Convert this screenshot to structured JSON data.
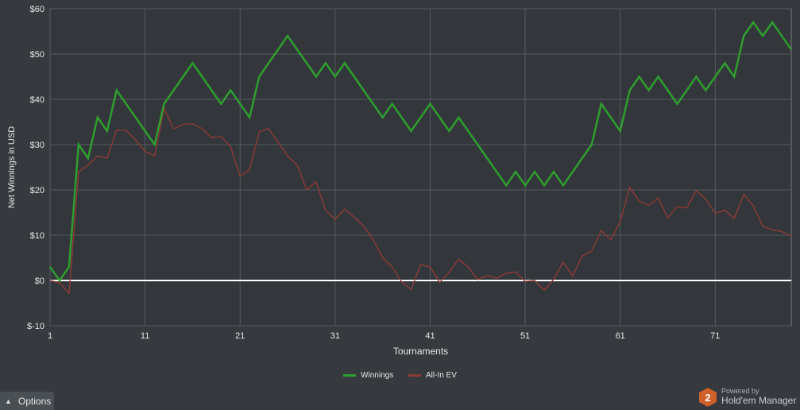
{
  "chart_data": {
    "type": "line",
    "xlabel": "Tournaments",
    "ylabel": "Net Winnings in USD",
    "xlim": [
      1,
      79
    ],
    "ylim": [
      -10,
      60
    ],
    "x_ticks": [
      1,
      11,
      21,
      31,
      41,
      51,
      61,
      71
    ],
    "y_ticks": [
      "$-10",
      "$0",
      "$10",
      "$20",
      "$30",
      "$40",
      "$50",
      "$60"
    ],
    "y_tick_values": [
      -10,
      0,
      10,
      20,
      30,
      40,
      50,
      60
    ],
    "grid": true,
    "legend_position": "bottom-center",
    "zero_line": true,
    "series": [
      {
        "name": "Winnings",
        "color": "#2e9e2e",
        "values": [
          3,
          0,
          3,
          30,
          27,
          36,
          33,
          42,
          39,
          36,
          33,
          30,
          39,
          42,
          45,
          48,
          45,
          42,
          39,
          42,
          39,
          36,
          45,
          48,
          51,
          54,
          51,
          48,
          45,
          48,
          45,
          48,
          45,
          42,
          39,
          36,
          39,
          36,
          33,
          36,
          39,
          36,
          33,
          36,
          33,
          30,
          27,
          24,
          21,
          24,
          21,
          24,
          21,
          24,
          21,
          24,
          27,
          30,
          39,
          36,
          33,
          42,
          45,
          42,
          45,
          42,
          39,
          42,
          45,
          42,
          45,
          48,
          45,
          54,
          57,
          54,
          57,
          54,
          51
        ]
      },
      {
        "name": "All-In EV",
        "color": "#8e3a36",
        "values": [
          0,
          -0.5,
          -2.8,
          24,
          25.5,
          27.5,
          27,
          33.2,
          33.2,
          31,
          28.5,
          27.5,
          38,
          33.5,
          34.5,
          34.6,
          33.5,
          31.5,
          31.8,
          29.5,
          23,
          24.5,
          32.8,
          33.5,
          30.5,
          27.5,
          25.5,
          20,
          21.8,
          15.5,
          13.5,
          15.8,
          14,
          12,
          9,
          5,
          3,
          -0.3,
          -2,
          3.5,
          3,
          -0.4,
          1.8,
          4.7,
          3,
          0.2,
          1.1,
          0.5,
          1.6,
          1.9,
          -0.2,
          0,
          -2.2,
          0.3,
          4,
          1,
          5.4,
          6.5,
          11,
          9,
          13,
          20.6,
          17.5,
          16.6,
          18.2,
          13.8,
          16.3,
          16,
          19.8,
          18,
          14.8,
          15.5,
          13.7,
          19,
          16.5,
          12,
          11.2,
          10.8,
          9.8
        ]
      }
    ]
  },
  "legend": {
    "winnings_label": "Winnings",
    "allin_label": "All-In EV",
    "winnings_color": "#2e9e2e",
    "allin_color": "#8e3a36"
  },
  "footer": {
    "options_label": "Options",
    "powered_by": "Powered by",
    "brand": "Hold'em Manager",
    "badge": "2"
  }
}
